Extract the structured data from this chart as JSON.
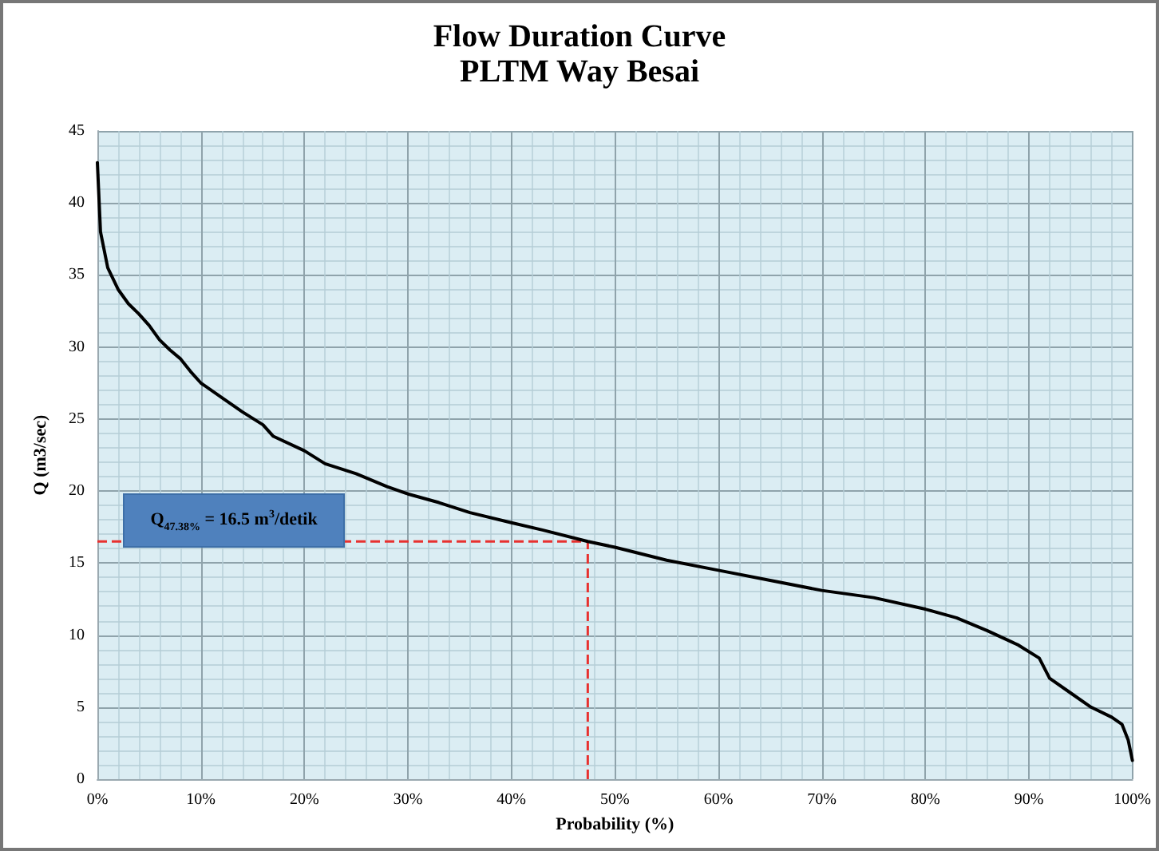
{
  "chart_data": {
    "type": "line",
    "title": "Flow Duration Curve",
    "subtitle": "PLTM Way Besai",
    "xlabel": "Probability (%)",
    "ylabel": "Q (m3/sec)",
    "x": [
      0,
      0.3,
      1,
      2,
      3,
      4,
      5,
      6,
      7,
      8,
      9,
      10,
      12,
      14,
      16,
      17,
      20,
      22,
      25,
      28,
      30,
      33,
      36,
      40,
      43,
      47.38,
      50,
      55,
      60,
      65,
      70,
      75,
      80,
      83,
      86,
      89,
      91,
      92,
      94,
      96,
      98,
      99,
      99.6,
      100
    ],
    "series": [
      {
        "color": "#000000",
        "values": [
          42.8,
          38,
          35.5,
          34,
          33,
          32.3,
          31.5,
          30.5,
          29.8,
          29.2,
          28.3,
          27.5,
          26.5,
          25.5,
          24.6,
          23.8,
          22.8,
          21.9,
          21.2,
          20.3,
          19.8,
          19.2,
          18.5,
          17.8,
          17.3,
          16.5,
          16.1,
          15.2,
          14.5,
          13.8,
          13.1,
          12.6,
          11.8,
          11.2,
          10.3,
          9.3,
          8.4,
          7.0,
          6.0,
          5.0,
          4.3,
          3.8,
          2.7,
          1.3
        ]
      }
    ],
    "xlim": [
      0,
      100
    ],
    "xticks": [
      {
        "value": 0,
        "label": "0%"
      },
      {
        "value": 10,
        "label": "10%"
      },
      {
        "value": 20,
        "label": "20%"
      },
      {
        "value": 30,
        "label": "30%"
      },
      {
        "value": 40,
        "label": "40%"
      },
      {
        "value": 50,
        "label": "50%"
      },
      {
        "value": 60,
        "label": "60%"
      },
      {
        "value": 70,
        "label": "70%"
      },
      {
        "value": 80,
        "label": "80%"
      },
      {
        "value": 90,
        "label": "90%"
      },
      {
        "value": 100,
        "label": "100%"
      }
    ],
    "ylim": [
      0,
      45
    ],
    "yticks": [
      0,
      5,
      10,
      15,
      20,
      25,
      30,
      35,
      40,
      45
    ],
    "ref_lines": [
      {
        "axis": "y",
        "value": 16.5,
        "color": "#e8312f",
        "line_style": "dashed"
      },
      {
        "axis": "x",
        "value": 47.38,
        "color": "#e8312f",
        "line_style": "dashed"
      }
    ],
    "annotations": [
      "Q$_{47.38%}$ = 16.5 m$^{3}$/detik"
    ],
    "grid": true,
    "marker": "none",
    "line_style": "solid"
  }
}
